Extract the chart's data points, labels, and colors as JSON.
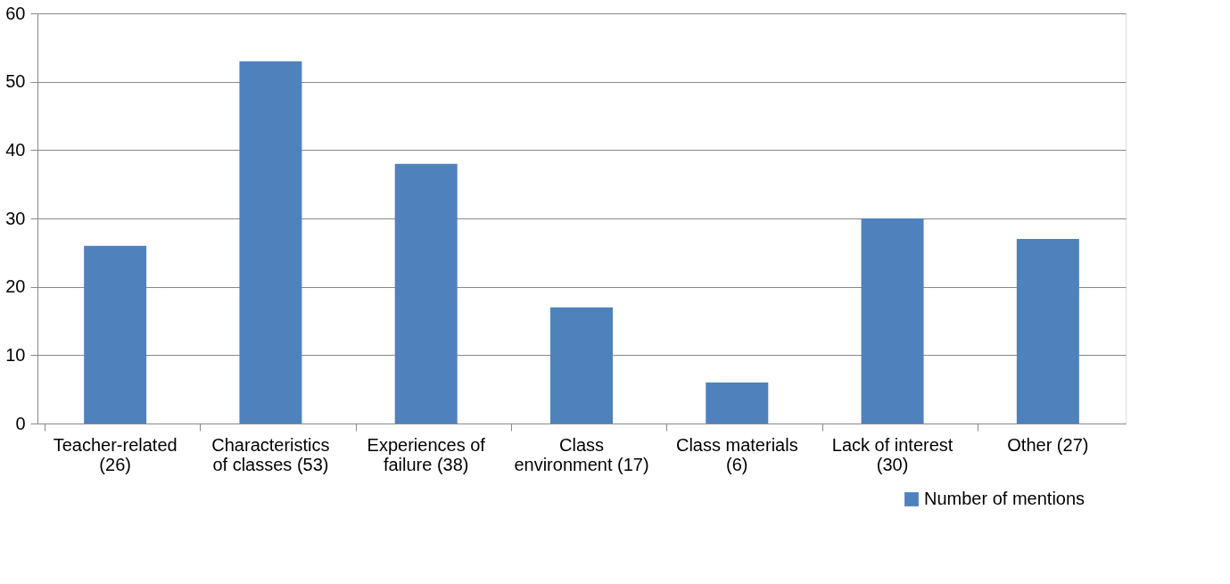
{
  "chart_data": {
    "type": "bar",
    "categories": [
      "Teacher-related (26)",
      "Characteristics of classes (53)",
      "Experiences of failure (38)",
      "Class environment (17)",
      "Class materials (6)",
      "Lack of interest (30)",
      "Other (27)"
    ],
    "series": [
      {
        "name": "Number of mentions",
        "color": "#4f81bd",
        "values": [
          26,
          53,
          38,
          17,
          6,
          30,
          27
        ]
      }
    ],
    "ylim": [
      0,
      60
    ],
    "yticks": [
      0,
      10,
      20,
      30,
      40,
      50,
      60
    ],
    "grid": "y",
    "legend": "bottom right"
  }
}
